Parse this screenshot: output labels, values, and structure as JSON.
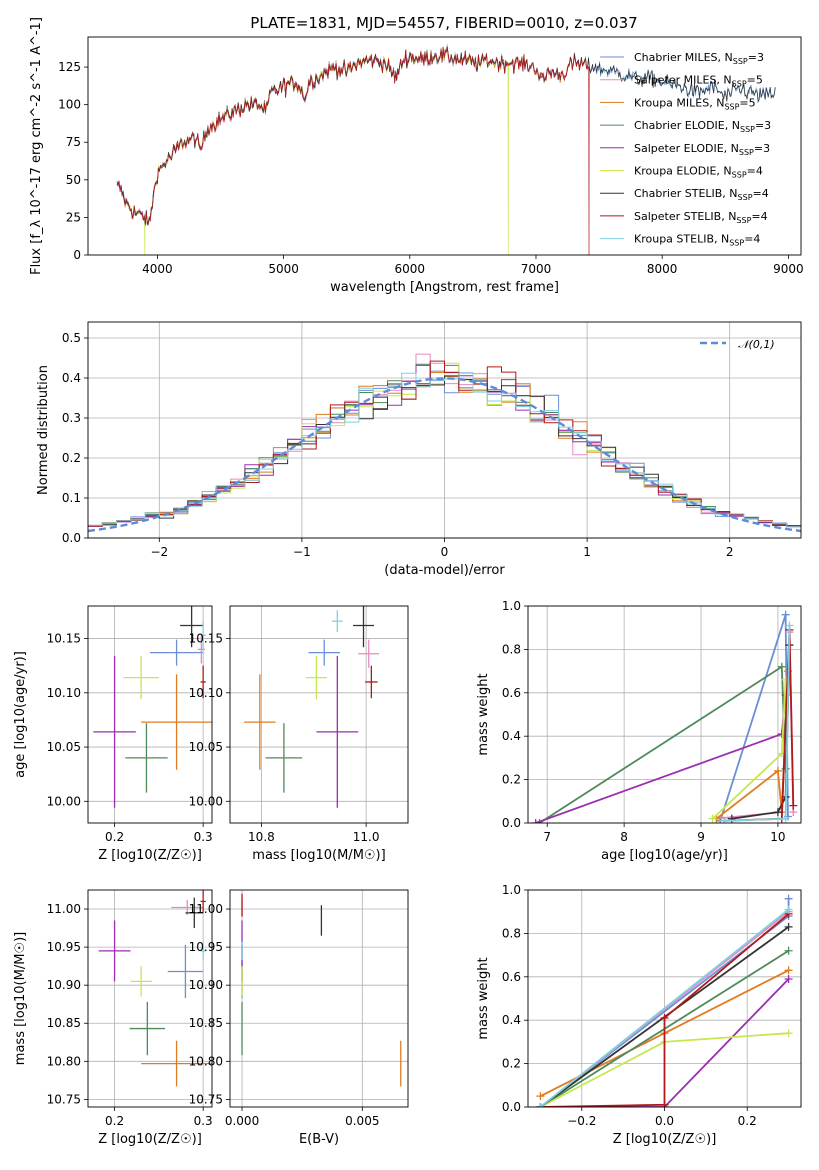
{
  "chart_data": [
    {
      "type": "line",
      "title": "PLATE=1831, MJD=54557, FIBERID=0010, z=0.037",
      "xlabel": "wavelength [Angstrom, rest frame]",
      "ylabel": "Flux [f_λ 10^-17 erg cm^-2 s^-1 A^-1]",
      "xlim": [
        3450,
        9100
      ],
      "ylim": [
        0,
        145
      ],
      "xticks": [
        "4000",
        "5000",
        "6000",
        "7000",
        "8000",
        "9000"
      ],
      "yticks": [
        "0",
        "25",
        "50",
        "75",
        "100",
        "125"
      ],
      "grid": false,
      "legend_position": "top-right",
      "spectrum_anchors": {
        "x": [
          3700,
          3750,
          3800,
          3850,
          3900,
          3933,
          3960,
          4000,
          4100,
          4200,
          4300,
          4340,
          4400,
          4500,
          4600,
          4700,
          4800,
          4861,
          4900,
          5000,
          5100,
          5175,
          5200,
          5300,
          5400,
          5500,
          5600,
          5700,
          5800,
          5890,
          5950,
          6000,
          6100,
          6200,
          6300,
          6400,
          6563,
          6600,
          6700,
          6800,
          6900,
          7000,
          7050,
          7100,
          7200,
          7300,
          7400,
          7500,
          7600,
          7700,
          7800,
          7900,
          8000,
          8100,
          8200,
          8300,
          8400,
          8500,
          8600,
          8700,
          8800,
          8900
        ],
        "y": [
          45,
          35,
          30,
          27,
          25,
          20,
          35,
          55,
          65,
          75,
          78,
          70,
          85,
          90,
          95,
          100,
          100,
          95,
          108,
          112,
          115,
          105,
          115,
          120,
          125,
          122,
          128,
          130,
          128,
          118,
          130,
          132,
          130,
          133,
          132,
          130,
          127,
          130,
          128,
          128,
          127,
          125,
          115,
          122,
          120,
          128,
          126,
          124,
          122,
          120,
          117,
          118,
          115,
          113,
          110,
          108,
          112,
          105,
          110,
          108,
          106,
          108
        ]
      },
      "drops": [
        {
          "model": "Kroupa ELODIE",
          "x": 3900
        },
        {
          "model": "Kroupa ELODIE",
          "x": 6780
        },
        {
          "model": "Salpeter STELIB",
          "x": 7420
        }
      ],
      "series": [
        {
          "name": "Chabrier MILES",
          "nssp": "3",
          "color": "#6a8fd6",
          "xmax": 8900
        },
        {
          "name": "Salpeter MILES",
          "nssp": "5",
          "color": "#e78ac3",
          "xmax": 7400
        },
        {
          "name": "Kroupa MILES",
          "nssp": "5",
          "color": "#e07b20",
          "xmax": 7400
        },
        {
          "name": "Chabrier ELODIE",
          "nssp": "3",
          "color": "#4f8a5a",
          "xmax": 6780
        },
        {
          "name": "Salpeter ELODIE",
          "nssp": "3",
          "color": "#9a2fb0",
          "xmax": 6780
        },
        {
          "name": "Kroupa ELODIE",
          "nssp": "4",
          "color": "#c5e84f",
          "xmax": 6780
        },
        {
          "name": "Chabrier STELIB",
          "nssp": "4",
          "color": "#333333",
          "xmax": 8900
        },
        {
          "name": "Salpeter STELIB",
          "nssp": "4",
          "color": "#b01a1a",
          "xmax": 7420
        },
        {
          "name": "Kroupa STELIB",
          "nssp": "4",
          "color": "#7fd0df",
          "xmax": 8900
        }
      ]
    },
    {
      "type": "line",
      "xlabel": "(data-model)/error",
      "ylabel": "Normed distribution",
      "xlim": [
        -2.5,
        2.5
      ],
      "ylim": [
        0,
        0.54
      ],
      "xticks": [
        "−2",
        "−1",
        "0",
        "1",
        "2"
      ],
      "yticks": [
        "0.0",
        "0.1",
        "0.2",
        "0.3",
        "0.4",
        "0.5"
      ],
      "grid": true,
      "legend_position": "top-right",
      "reference": {
        "name": "𝒩(0,1)",
        "color": "#5b8bd9",
        "style": "dashed"
      },
      "bin_width": 0.1,
      "series_note": "one step histogram per model, same colors as the spectrum legend"
    },
    {
      "type": "scatter",
      "xlabel": "Z [log10(Z/Z☉)]",
      "ylabel": "age [log10(age/yr)]",
      "xlim": [
        0.17,
        0.31
      ],
      "ylim": [
        9.98,
        10.18
      ],
      "xticks": [
        "0.2",
        "0.3"
      ],
      "yticks": [
        "10.00",
        "10.05",
        "10.10",
        "10.15"
      ],
      "grid": true,
      "points": [
        {
          "model": "Chabrier MILES",
          "x": 0.27,
          "y": 10.137,
          "xerr": 0.03,
          "yerr": 0.012
        },
        {
          "model": "Salpeter MILES",
          "x": 0.298,
          "y": 10.14,
          "xerr": 0.004,
          "yerr": 0.013
        },
        {
          "model": "Kroupa MILES",
          "x": 0.27,
          "y": 10.073,
          "xerr": 0.04,
          "yerr": 0.044
        },
        {
          "model": "Chabrier ELODIE",
          "x": 0.236,
          "y": 10.04,
          "xerr": 0.024,
          "yerr": 0.032
        },
        {
          "model": "Salpeter ELODIE",
          "x": 0.2,
          "y": 10.064,
          "xerr": 0.024,
          "yerr": 0.07
        },
        {
          "model": "Kroupa ELODIE",
          "x": 0.23,
          "y": 10.114,
          "xerr": 0.02,
          "yerr": 0.02
        },
        {
          "model": "Chabrier STELIB",
          "x": 0.287,
          "y": 10.162,
          "xerr": 0.013,
          "yerr": 0.02
        },
        {
          "model": "Salpeter STELIB",
          "x": 0.3,
          "y": 10.11,
          "xerr": 0.003,
          "yerr": 0.015
        },
        {
          "model": "Kroupa STELIB",
          "x": 0.3,
          "y": 10.153,
          "xerr": 0.003,
          "yerr": 0.013
        }
      ]
    },
    {
      "type": "scatter",
      "xlabel": "mass [log10(M/M☉)]",
      "ylabel": "",
      "xlim": [
        10.74,
        11.08
      ],
      "ylim": [
        9.98,
        10.18
      ],
      "xticks": [
        "10.8",
        "11.0"
      ],
      "yticks": [
        "10.00",
        "10.05",
        "10.10",
        "10.15"
      ],
      "grid": true,
      "points": [
        {
          "model": "Chabrier MILES",
          "x": 10.92,
          "y": 10.137,
          "xerr": 0.03,
          "yerr": 0.012
        },
        {
          "model": "Salpeter MILES",
          "x": 11.005,
          "y": 10.136,
          "xerr": 0.02,
          "yerr": 0.013
        },
        {
          "model": "Kroupa MILES",
          "x": 10.797,
          "y": 10.073,
          "xerr": 0.03,
          "yerr": 0.044
        },
        {
          "model": "Chabrier ELODIE",
          "x": 10.843,
          "y": 10.04,
          "xerr": 0.035,
          "yerr": 0.032
        },
        {
          "model": "Salpeter ELODIE",
          "x": 10.945,
          "y": 10.064,
          "xerr": 0.04,
          "yerr": 0.07
        },
        {
          "model": "Kroupa ELODIE",
          "x": 10.905,
          "y": 10.114,
          "xerr": 0.02,
          "yerr": 0.02
        },
        {
          "model": "Chabrier STELIB",
          "x": 10.995,
          "y": 10.162,
          "xerr": 0.02,
          "yerr": 0.02
        },
        {
          "model": "Salpeter STELIB",
          "x": 11.01,
          "y": 10.11,
          "xerr": 0.012,
          "yerr": 0.015
        },
        {
          "model": "Kroupa STELIB",
          "x": 10.945,
          "y": 10.166,
          "xerr": 0.01,
          "yerr": 0.01
        }
      ]
    },
    {
      "type": "line",
      "xlabel": "age [log10(age/yr)]",
      "ylabel": "mass weight",
      "xlim": [
        6.75,
        10.3
      ],
      "ylim": [
        0,
        1.0
      ],
      "xticks": [
        "7",
        "8",
        "9",
        "10"
      ],
      "yticks": [
        "0.0",
        "0.2",
        "0.4",
        "0.6",
        "0.8",
        "1.0"
      ],
      "grid": true,
      "series": [
        {
          "model": "Chabrier MILES",
          "x": [
            9.25,
            10.1,
            10.13
          ],
          "y": [
            0.01,
            0.96,
            0.03
          ]
        },
        {
          "model": "Salpeter MILES",
          "x": [
            9.2,
            10.05,
            10.15,
            10.2
          ],
          "y": [
            0.02,
            0.05,
            0.88,
            0.05
          ]
        },
        {
          "model": "Kroupa MILES",
          "x": [
            9.2,
            10.0,
            10.05,
            10.13
          ],
          "y": [
            0.02,
            0.24,
            0.05,
            0.7
          ]
        },
        {
          "model": "Chabrier ELODIE",
          "x": [
            6.9,
            10.05,
            10.1
          ],
          "y": [
            0.0,
            0.72,
            0.25
          ]
        },
        {
          "model": "Salpeter ELODIE",
          "x": [
            6.85,
            10.05,
            10.1
          ],
          "y": [
            0.0,
            0.41,
            0.59
          ]
        },
        {
          "model": "Kroupa ELODIE",
          "x": [
            9.15,
            10.05,
            10.1
          ],
          "y": [
            0.02,
            0.32,
            0.66
          ]
        },
        {
          "model": "Chabrier STELIB",
          "x": [
            9.4,
            10.0,
            10.1,
            10.15
          ],
          "y": [
            0.02,
            0.05,
            0.12,
            0.82
          ]
        },
        {
          "model": "Salpeter STELIB",
          "x": [
            9.3,
            10.05,
            10.15,
            10.2
          ],
          "y": [
            0.01,
            0.02,
            0.89,
            0.08
          ]
        },
        {
          "model": "Kroupa STELIB",
          "x": [
            9.3,
            10.1,
            10.15
          ],
          "y": [
            0.01,
            0.02,
            0.91
          ]
        }
      ]
    },
    {
      "type": "scatter",
      "xlabel": "Z [log10(Z/Z☉)]",
      "ylabel": "mass [log10(M/M☉)]",
      "xlim": [
        0.17,
        0.31
      ],
      "ylim": [
        10.74,
        11.025
      ],
      "xticks": [
        "0.2",
        "0.3"
      ],
      "yticks": [
        "10.75",
        "10.80",
        "10.85",
        "10.90",
        "10.95",
        "11.00"
      ],
      "grid": true,
      "points": [
        {
          "model": "Chabrier MILES",
          "x": 0.28,
          "y": 10.918,
          "xerr": 0.02,
          "yerr": 0.035
        },
        {
          "model": "Salpeter MILES",
          "x": 0.282,
          "y": 11.002,
          "xerr": 0.018,
          "yerr": 0.01
        },
        {
          "model": "Kroupa MILES",
          "x": 0.27,
          "y": 10.797,
          "xerr": 0.04,
          "yerr": 0.03
        },
        {
          "model": "Chabrier ELODIE",
          "x": 0.237,
          "y": 10.843,
          "xerr": 0.02,
          "yerr": 0.035
        },
        {
          "model": "Salpeter ELODIE",
          "x": 0.2,
          "y": 10.945,
          "xerr": 0.018,
          "yerr": 0.04
        },
        {
          "model": "Kroupa ELODIE",
          "x": 0.23,
          "y": 10.905,
          "xerr": 0.012,
          "yerr": 0.02
        },
        {
          "model": "Chabrier STELIB",
          "x": 0.29,
          "y": 10.995,
          "xerr": 0.01,
          "yerr": 0.02
        },
        {
          "model": "Salpeter STELIB",
          "x": 0.3,
          "y": 11.01,
          "xerr": 0.003,
          "yerr": 0.015
        },
        {
          "model": "Kroupa STELIB",
          "x": 0.3,
          "y": 10.945,
          "xerr": 0.003,
          "yerr": 0.012
        }
      ]
    },
    {
      "type": "scatter",
      "xlabel": "E(B-V)",
      "ylabel": "",
      "xlim": [
        -0.0005,
        0.0069
      ],
      "ylim": [
        10.74,
        11.025
      ],
      "xticks": [
        "0.000",
        "0.005"
      ],
      "yticks": [
        "10.75",
        "10.80",
        "10.85",
        "10.90",
        "10.95",
        "11.00"
      ],
      "grid": true,
      "points": [
        {
          "model": "Chabrier MILES",
          "x": 0.0,
          "y": 10.918,
          "yerr": 0.035
        },
        {
          "model": "Salpeter MILES",
          "x": 0.0,
          "y": 11.002,
          "yerr": 0.01
        },
        {
          "model": "Kroupa MILES",
          "x": 0.0066,
          "y": 10.797,
          "yerr": 0.03
        },
        {
          "model": "Chabrier ELODIE",
          "x": 0.0,
          "y": 10.843,
          "yerr": 0.035
        },
        {
          "model": "Salpeter ELODIE",
          "x": 0.0,
          "y": 10.945,
          "yerr": 0.04
        },
        {
          "model": "Kroupa ELODIE",
          "x": 0.0,
          "y": 10.905,
          "yerr": 0.02
        },
        {
          "model": "Chabrier STELIB",
          "x": 0.0033,
          "y": 10.985,
          "yerr": 0.02
        },
        {
          "model": "Salpeter STELIB",
          "x": 0.0,
          "y": 11.005,
          "yerr": 0.015
        },
        {
          "model": "Kroupa STELIB",
          "x": 0.0,
          "y": 10.945,
          "yerr": 0.012
        }
      ]
    },
    {
      "type": "line",
      "xlabel": "Z [log10(Z/Z☉)]",
      "ylabel": "mass weight",
      "xlim": [
        -0.33,
        0.33
      ],
      "ylim": [
        0,
        1.0
      ],
      "xticks": [
        "−0.2",
        "0.0",
        "0.2"
      ],
      "yticks": [
        "0.0",
        "0.2",
        "0.4",
        "0.6",
        "0.8",
        "1.0"
      ],
      "grid": true,
      "series": [
        {
          "model": "Chabrier MILES",
          "x": [
            -0.3,
            0.3,
            0.3
          ],
          "y": [
            0.0,
            0.88,
            0.96
          ]
        },
        {
          "model": "Salpeter MILES",
          "x": [
            -0.3,
            0.3
          ],
          "y": [
            0.0,
            0.9
          ]
        },
        {
          "model": "Kroupa MILES",
          "x": [
            -0.3,
            0.0,
            0.3
          ],
          "y": [
            0.05,
            0.34,
            0.63
          ]
        },
        {
          "model": "Chabrier ELODIE",
          "x": [
            -0.3,
            0.3
          ],
          "y": [
            0.0,
            0.72
          ]
        },
        {
          "model": "Salpeter ELODIE",
          "x": [
            -0.3,
            0.0,
            0.3
          ],
          "y": [
            0.0,
            0.0,
            0.59
          ]
        },
        {
          "model": "Kroupa ELODIE",
          "x": [
            -0.3,
            0.0,
            0.3
          ],
          "y": [
            0.0,
            0.3,
            0.34
          ]
        },
        {
          "model": "Chabrier STELIB",
          "x": [
            -0.3,
            0.3
          ],
          "y": [
            0.0,
            0.83
          ]
        },
        {
          "model": "Salpeter STELIB",
          "x": [
            -0.3,
            0.0,
            0.0,
            0.3
          ],
          "y": [
            0.0,
            0.01,
            0.41,
            0.89
          ]
        },
        {
          "model": "Kroupa STELIB",
          "x": [
            -0.3,
            0.3
          ],
          "y": [
            0.0,
            0.91
          ]
        }
      ]
    }
  ]
}
